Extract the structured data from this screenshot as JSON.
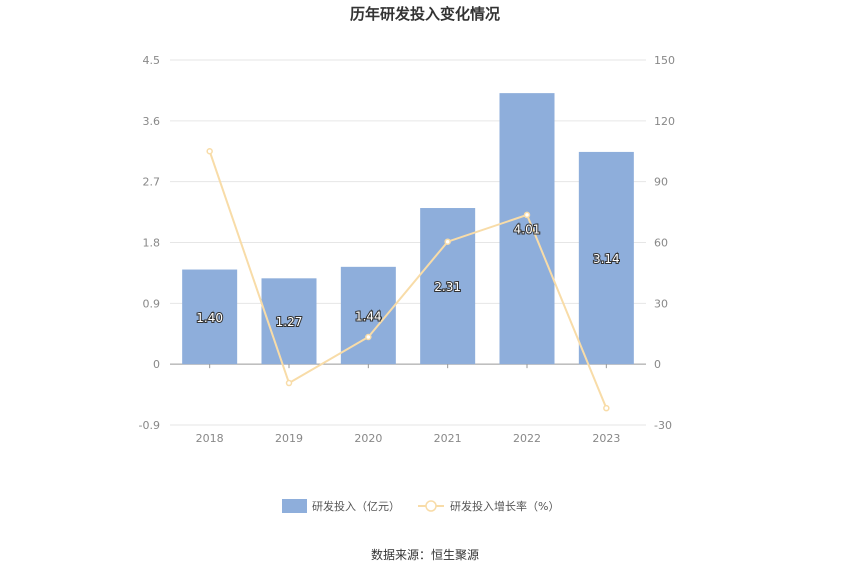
{
  "chart_data": {
    "type": "bar",
    "title": "历年研发投入变化情况",
    "categories": [
      "2018",
      "2019",
      "2020",
      "2021",
      "2022",
      "2023"
    ],
    "series": [
      {
        "name": "研发投入（亿元）",
        "type": "bar",
        "axis": "left",
        "color": "#8eaedb",
        "values": [
          1.4,
          1.27,
          1.44,
          2.31,
          4.01,
          3.14
        ],
        "labels": [
          "1.40",
          "1.27",
          "1.44",
          "2.31",
          "4.01",
          "3.14"
        ]
      },
      {
        "name": "研发投入增长率（%）",
        "type": "line",
        "axis": "right",
        "color": "#f8dca8",
        "values": [
          105,
          -9.3,
          13.4,
          60.4,
          73.6,
          -21.7
        ]
      }
    ],
    "y_left": {
      "ylim": [
        -0.9,
        4.5
      ],
      "ticks": [
        "4.5",
        "3.6",
        "2.7",
        "1.8",
        "0.9",
        "0",
        "-0.9"
      ]
    },
    "y_right": {
      "ylim": [
        -30,
        150
      ],
      "ticks": [
        "150",
        "120",
        "90",
        "60",
        "30",
        "0",
        "-30"
      ]
    },
    "grid": true,
    "legend_position": "bottom"
  },
  "source_text": "数据来源：恒生聚源"
}
